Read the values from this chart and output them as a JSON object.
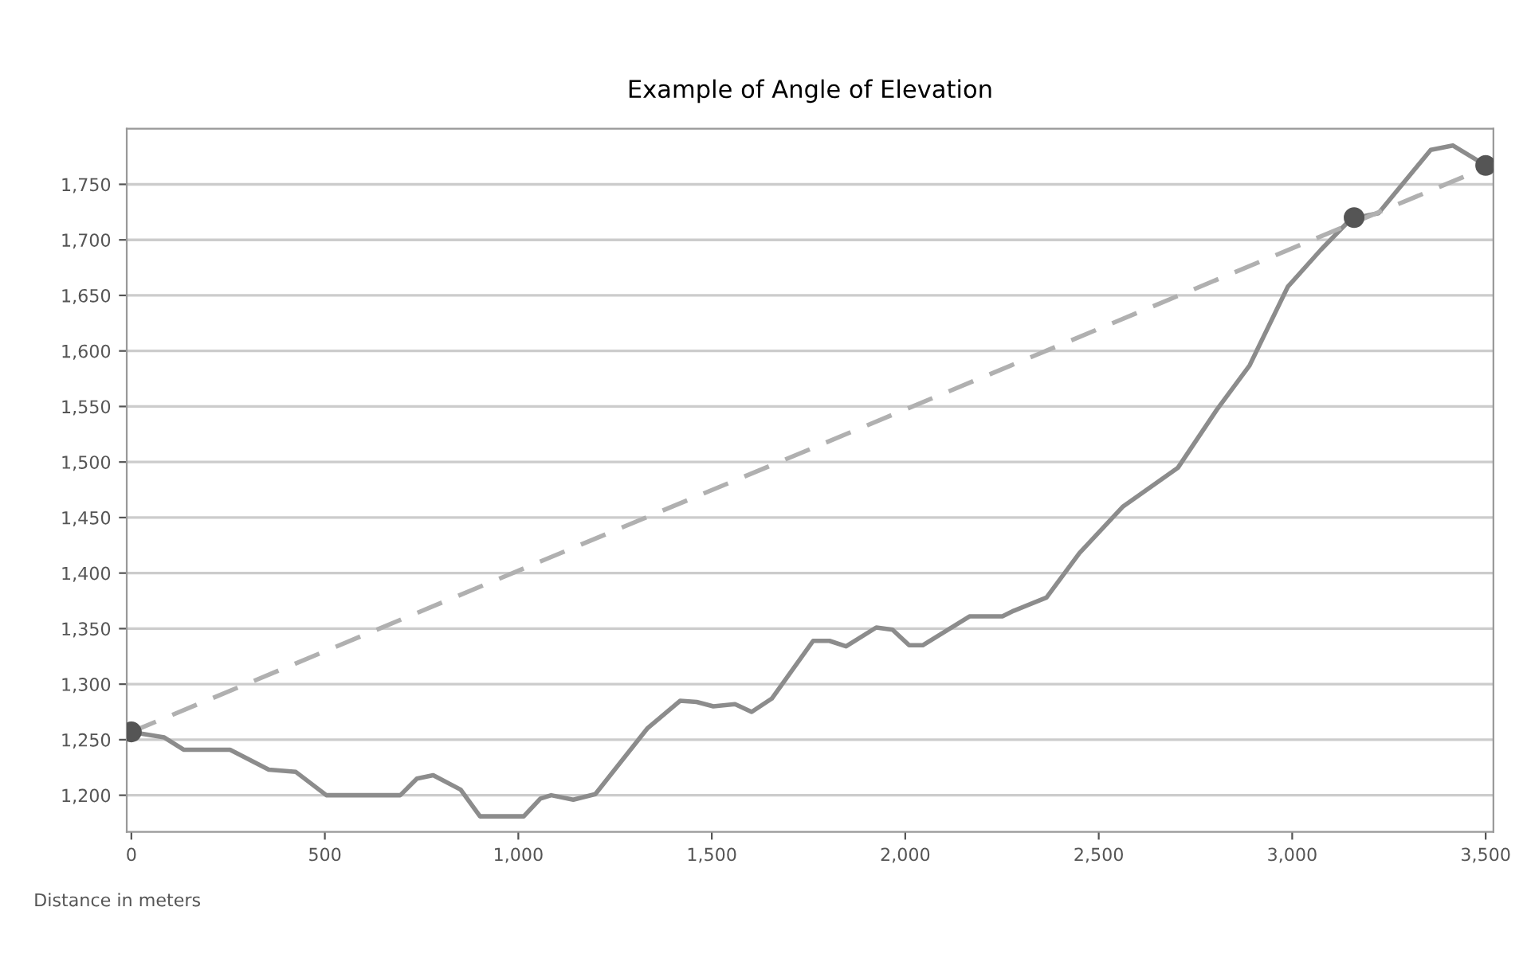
{
  "chart_data": {
    "type": "line",
    "title": "Example of Angle of Elevation",
    "xlabel": "Distance in meters",
    "xlim": [
      -12,
      3520
    ],
    "ylim": [
      1167,
      1800
    ],
    "xticks": [
      0,
      500,
      {
        "value": 1000,
        "label": "1,000"
      },
      {
        "value": 1500,
        "label": "1,500"
      },
      {
        "value": 2000,
        "label": "2,000"
      },
      {
        "value": 2500,
        "label": "2,500"
      },
      {
        "value": 3000,
        "label": "3,000"
      },
      {
        "value": 3500,
        "label": "3,500"
      }
    ],
    "yticks": [
      {
        "value": 1200,
        "label": "1,200"
      },
      {
        "value": 1250,
        "label": "1,250"
      },
      {
        "value": 1300,
        "label": "1,300"
      },
      {
        "value": 1350,
        "label": "1,350"
      },
      {
        "value": 1400,
        "label": "1,400"
      },
      {
        "value": 1450,
        "label": "1,450"
      },
      {
        "value": 1500,
        "label": "1,500"
      },
      {
        "value": 1550,
        "label": "1,550"
      },
      {
        "value": 1600,
        "label": "1,600"
      },
      {
        "value": 1650,
        "label": "1,650"
      },
      {
        "value": 1700,
        "label": "1,700"
      },
      {
        "value": 1750,
        "label": "1,750"
      }
    ],
    "grid": "y",
    "series": [
      {
        "color": "#8c8c8c",
        "line_style": "solid",
        "marker": "none",
        "x": [
          0,
          85,
          135,
          255,
          355,
          425,
          504,
          695,
          738,
          780,
          851,
          901,
          1014,
          1057,
          1085,
          1142,
          1199,
          1333,
          1418,
          1461,
          1504,
          1560,
          1603,
          1655,
          1762,
          1804,
          1847,
          1925,
          1967,
          2010,
          2045,
          2166,
          2251,
          2280,
          2365,
          2450,
          2563,
          2705,
          2805,
          2890,
          2989,
          3074,
          3152,
          3223,
          3358,
          3415,
          3500
        ],
        "values": [
          1257,
          1252,
          1241,
          1241,
          1223,
          1221,
          1200,
          1200,
          1215,
          1218,
          1205,
          1181,
          1181,
          1197,
          1200,
          1196,
          1201,
          1260,
          1285,
          1284,
          1280,
          1282,
          1275,
          1287,
          1339,
          1339,
          1334,
          1351,
          1349,
          1335,
          1335,
          1361,
          1361,
          1366,
          1378,
          1418,
          1460,
          1495,
          1547,
          1587,
          1658,
          1691,
          1719,
          1724,
          1781,
          1785,
          1767
        ]
      },
      {
        "color": "#b0b0b0",
        "line_style": "dashed",
        "marker": "none",
        "x": [
          0,
          3500
        ],
        "values": [
          1257,
          1765
        ]
      },
      {
        "type": "scatter",
        "color": "#555555",
        "marker": "circle",
        "x": [
          0,
          3160,
          3500
        ],
        "values": [
          1257,
          1720,
          1767
        ]
      }
    ]
  }
}
